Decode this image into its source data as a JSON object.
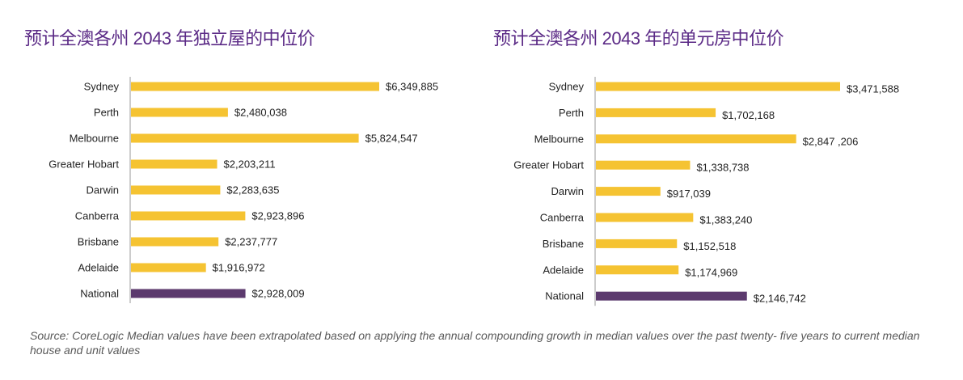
{
  "colors": {
    "bar": "#f5c332",
    "national": "#5c3a6e",
    "title": "#5b2a86",
    "axis": "#999999"
  },
  "chart_data": [
    {
      "type": "bar",
      "orientation": "horizontal",
      "title": "预计全澳各州 2043 年独立屋的中位价",
      "categories": [
        "Sydney",
        "Perth",
        "Melbourne",
        "Greater Hobart",
        "Darwin",
        "Canberra",
        "Brisbane",
        "Adelaide",
        "National"
      ],
      "values": [
        6349885,
        2480038,
        5824547,
        2203211,
        2283635,
        2923896,
        2237777,
        1916972,
        2928009
      ],
      "data_labels": [
        "$6,349,885",
        "$2,480,038",
        "$5,824,547",
        "$2,203,211",
        "$2,283,635",
        "$2,923,896",
        "$2,237,777",
        "$1,916,972",
        "$2,928,009"
      ],
      "grid": false
    },
    {
      "type": "bar",
      "orientation": "horizontal",
      "title": "预计全澳各州 2043 年的单元房中位价",
      "categories": [
        "Sydney",
        "Perth",
        "Melbourne",
        "Greater Hobart",
        "Darwin",
        "Canberra",
        "Brisbane",
        "Adelaide",
        "National"
      ],
      "values": [
        3471588,
        1702168,
        2847206,
        1338738,
        917039,
        1383240,
        1152518,
        1174969,
        2146742
      ],
      "data_labels": [
        "$3,471,588",
        "$1,702,168",
        "$2,847 ,206",
        "$1,338,738",
        "$917,039",
        "$1,383,240",
        "$1,152,518",
        "$1,174,969",
        "$2,146,742"
      ],
      "grid": false
    }
  ],
  "source": "Source: CoreLogic  Median values have been extrapolated based on applying the annual compounding growth in median values over the past twenty- five years to current median house and unit values"
}
